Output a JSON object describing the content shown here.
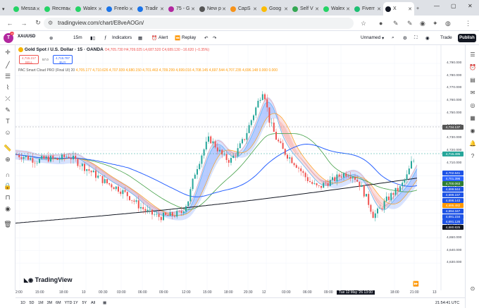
{
  "browser": {
    "tabs": [
      {
        "label": "Messa",
        "color": "#25d366"
      },
      {
        "label": "Recrea",
        "color": "#25d366"
      },
      {
        "label": "Walex",
        "color": "#25d366"
      },
      {
        "label": "Freelo",
        "color": "#1a73e8"
      },
      {
        "label": "Tradir",
        "color": "#1a73e8"
      },
      {
        "label": "75 - G",
        "color": "#b2279f"
      },
      {
        "label": "New p",
        "color": "#555555"
      },
      {
        "label": "CapS",
        "color": "#f7931a"
      },
      {
        "label": "Goog",
        "color": "#fbbc05"
      },
      {
        "label": "Self V",
        "color": "#34a853"
      },
      {
        "label": "Walex",
        "color": "#25d366"
      },
      {
        "label": "Fiverr",
        "color": "#1dbf73"
      },
      {
        "label": "X",
        "color": "#131722"
      }
    ],
    "url": "tradingview.com/chart/E8veAOGn/"
  },
  "toolbar": {
    "avatar_letter": "T",
    "avatar_badge": "19",
    "symbol": "XAUUSD",
    "interval": "15m",
    "indicators": "Indicators",
    "alert": "Alert",
    "replay": "Replay",
    "layout_name": "Unnamed",
    "trade": "Trade",
    "publish": "Publish"
  },
  "legend": {
    "title": "Gold Spot / U.S. Dollar · 15 · OANDA",
    "ohlc": "O4,705.730  H4,709.025  L4,687.520  C4,689.130  −16.620 (−0.35%)",
    "sell_price": "4,715.217",
    "sell_label": "SELL",
    "spread": "57.0",
    "buy_price": "4,715.787",
    "buy_label": "BUY",
    "indicator_name": "PAC Smart Cloud PRO (Final UI) 20",
    "indicator_values": "4,705.177  4,710.626  4,707.939  4,680.150  4,701.463  4,709.299  4,699.016  4,708.145  4,697.544  4,707.235  4,696.148  0.000  0.000"
  },
  "yaxis": {
    "ticks": [
      "4,790.000",
      "4,780.000",
      "4,770.000",
      "4,760.000",
      "4,750.000",
      "4,740.000",
      "4,730.000",
      "4,720.000",
      "4,710.000",
      "4,700.000",
      "4,690.000",
      "4,680.000",
      "4,670.000",
      "4,660.000",
      "4,650.000",
      "4,640.000",
      "4,630.000"
    ],
    "crosshair_price": "4,734.137",
    "last_price": "4,715.495",
    "badges": [
      {
        "value": "4,702.641",
        "color": "#1e53e5"
      },
      {
        "value": "4,701.396",
        "color": "#2962ff"
      },
      {
        "value": "4,700.063",
        "color": "#2e7d32"
      },
      {
        "value": "4,699.844",
        "color": "#1e53e5"
      },
      {
        "value": "4,699.157",
        "color": "#1e53e5"
      },
      {
        "value": "4,698.143",
        "color": "#1e53e5"
      },
      {
        "value": "4,695.482",
        "color": "#ff9800"
      },
      {
        "value": "4,694.347",
        "color": "#1e53e5"
      },
      {
        "value": "4,691.234",
        "color": "#1e53e5"
      },
      {
        "value": "4,691.126",
        "color": "#1e53e5"
      },
      {
        "value": "4,680.825",
        "color": "#131722"
      }
    ]
  },
  "xaxis": {
    "ticks": [
      "2:00",
      "15:00",
      "18:00",
      "10",
      "00:30",
      "03:00",
      "06:00",
      "09:00",
      "12:00",
      "15:00",
      "18:00",
      "20:30",
      "12",
      "03:00",
      "06:00",
      "09:00",
      "Tue 12 May '26  13:00",
      "18:00",
      "21:00",
      "13"
    ],
    "time": "21:54:41 UTC"
  },
  "bottom": {
    "ranges": [
      "1D",
      "5D",
      "1M",
      "3M",
      "6M",
      "YTD",
      "1Y",
      "5Y",
      "All"
    ]
  },
  "brand": "TradingView",
  "colors": {
    "up": "#26a69a",
    "down": "#ef5350",
    "ema_blue": "#2962ff",
    "ema_green": "#43a047",
    "ema_black": "#131722"
  }
}
